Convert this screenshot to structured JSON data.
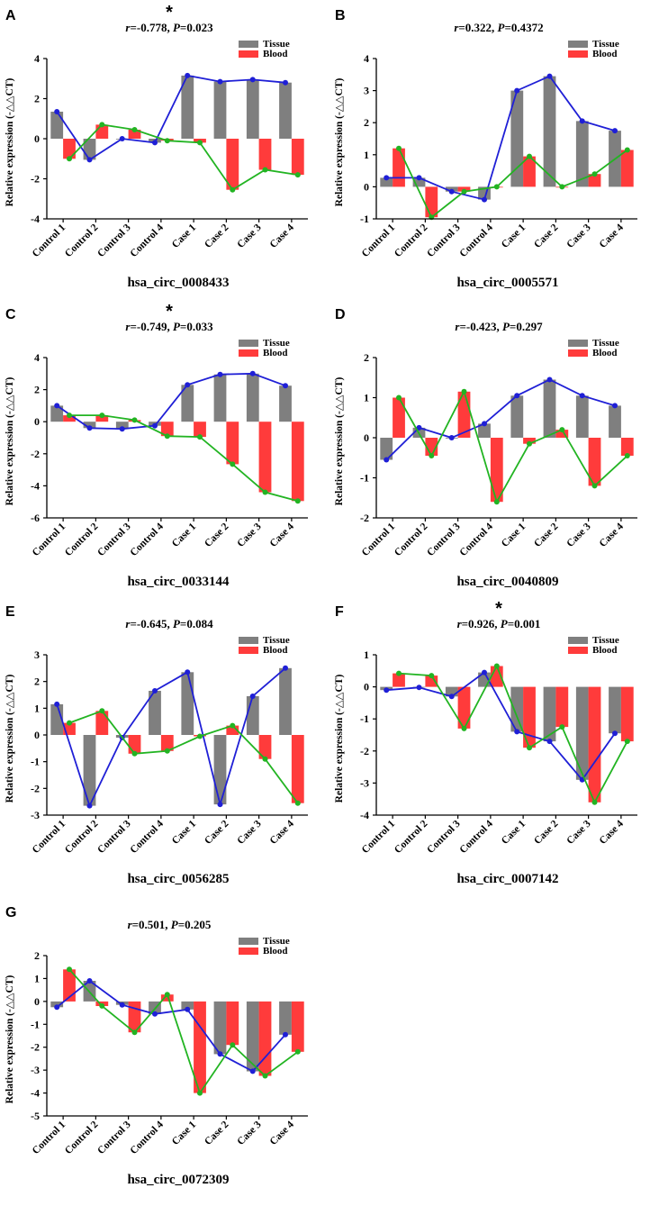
{
  "figure": {
    "legend": {
      "tissue": "Tissue",
      "blood": "Blood"
    },
    "colors": {
      "tissue_bar": "#7f7f7f",
      "blood_bar": "#ff3b3b",
      "tissue_line": "#1f1fd6",
      "blood_line": "#22b422"
    }
  },
  "chart_data": [
    {
      "panel": "A",
      "type": "bar+line",
      "title": "r=-0.778, P=0.023",
      "r": "-0.778",
      "p": "0.023",
      "significance": "*",
      "xlabel": "hsa_circ_0008433",
      "ylabel": "Relative expression (-△△CT)",
      "categories": [
        "Control 1",
        "Control 2",
        "Control 3",
        "Control 4",
        "Case 1",
        "Case 2",
        "Case 3",
        "Case 4"
      ],
      "ylim": [
        -4,
        4
      ],
      "yticks": [
        -4,
        -2,
        0,
        2,
        4
      ],
      "series": [
        {
          "name": "Tissue",
          "values": [
            1.35,
            -1.05,
            0.0,
            -0.2,
            3.15,
            2.85,
            2.95,
            2.8
          ]
        },
        {
          "name": "Blood",
          "values": [
            -1.0,
            0.7,
            0.45,
            -0.1,
            -0.2,
            -2.55,
            -1.55,
            -1.8
          ]
        }
      ]
    },
    {
      "panel": "B",
      "type": "bar+line",
      "title": "r=0.322, P=0.4372",
      "r": "0.322",
      "p": "0.4372",
      "significance": "",
      "xlabel": "hsa_circ_0005571",
      "ylabel": "Relative expression (-△△CT)",
      "categories": [
        "Control 1",
        "Control 2",
        "Control 3",
        "Control 4",
        "Case 1",
        "Case 2",
        "Case 3",
        "Case 4"
      ],
      "ylim": [
        -1,
        4
      ],
      "yticks": [
        -1,
        0,
        1,
        2,
        3,
        4
      ],
      "series": [
        {
          "name": "Tissue",
          "values": [
            0.28,
            0.28,
            -0.15,
            -0.4,
            3.0,
            3.45,
            2.05,
            1.75
          ]
        },
        {
          "name": "Blood",
          "values": [
            1.2,
            -0.95,
            -0.15,
            0.0,
            0.95,
            0.0,
            0.4,
            1.15
          ]
        }
      ]
    },
    {
      "panel": "C",
      "type": "bar+line",
      "title": "r=-0.749, P=0.033",
      "r": "-0.749",
      "p": "0.033",
      "significance": "*",
      "xlabel": "hsa_circ_0033144",
      "ylabel": "Relative expression (-△△CT)",
      "categories": [
        "Control 1",
        "Control 2",
        "Control 3",
        "Control 4",
        "Case 1",
        "Case 2",
        "Case 3",
        "Case 4"
      ],
      "ylim": [
        -6,
        4
      ],
      "yticks": [
        -6,
        -4,
        -2,
        0,
        2,
        4
      ],
      "series": [
        {
          "name": "Tissue",
          "values": [
            1.0,
            -0.4,
            -0.45,
            -0.25,
            2.3,
            2.95,
            3.0,
            2.25
          ]
        },
        {
          "name": "Blood",
          "values": [
            0.4,
            0.4,
            0.1,
            -0.9,
            -0.95,
            -2.65,
            -4.4,
            -4.95
          ]
        }
      ]
    },
    {
      "panel": "D",
      "type": "bar+line",
      "title": "r=-0.423, P=0.297",
      "r": "-0.423",
      "p": "0.297",
      "significance": "",
      "xlabel": "hsa_circ_0040809",
      "ylabel": "Relative expression (-△△CT)",
      "categories": [
        "Control 1",
        "Control 2",
        "Control 3",
        "Control 4",
        "Case 1",
        "Case 2",
        "Case 3",
        "Case 4"
      ],
      "ylim": [
        -2,
        2
      ],
      "yticks": [
        -2,
        -1,
        0,
        1,
        2
      ],
      "series": [
        {
          "name": "Tissue",
          "values": [
            -0.55,
            0.25,
            0.0,
            0.35,
            1.05,
            1.45,
            1.05,
            0.8
          ]
        },
        {
          "name": "Blood",
          "values": [
            1.0,
            -0.45,
            1.15,
            -1.6,
            -0.15,
            0.2,
            -1.2,
            -0.45
          ]
        }
      ]
    },
    {
      "panel": "E",
      "type": "bar+line",
      "title": "r=-0.645, P=0.084",
      "r": "-0.645",
      "p": "0.084",
      "significance": "",
      "xlabel": "hsa_circ_0056285",
      "ylabel": "Relative expression (-△△CT)",
      "categories": [
        "Control 1",
        "Control 2",
        "Control 3",
        "Control 4",
        "Case 1",
        "Case 2",
        "Case 3",
        "Case 4"
      ],
      "ylim": [
        -3,
        3
      ],
      "yticks": [
        -3,
        -2,
        -1,
        0,
        1,
        2,
        3
      ],
      "series": [
        {
          "name": "Tissue",
          "values": [
            1.15,
            -2.65,
            -0.1,
            1.65,
            2.35,
            -2.6,
            1.45,
            2.5
          ]
        },
        {
          "name": "Blood",
          "values": [
            0.45,
            0.9,
            -0.7,
            -0.6,
            -0.05,
            0.35,
            -0.9,
            -2.55
          ]
        }
      ]
    },
    {
      "panel": "F",
      "type": "bar+line",
      "title": "r=0.926, P=0.001",
      "r": "0.926",
      "p": "0.001",
      "significance": "*",
      "xlabel": "hsa_circ_0007142",
      "ylabel": "Relative expression (-△△CT)",
      "categories": [
        "Control 1",
        "Control 2",
        "Control 3",
        "Control 4",
        "Case 1",
        "Case 2",
        "Case 3",
        "Case 4"
      ],
      "ylim": [
        -4,
        1
      ],
      "yticks": [
        -4,
        -3,
        -2,
        -1,
        0,
        1
      ],
      "series": [
        {
          "name": "Tissue",
          "values": [
            -0.1,
            -0.02,
            -0.3,
            0.45,
            -1.4,
            -1.7,
            -2.9,
            -1.45
          ]
        },
        {
          "name": "Blood",
          "values": [
            0.42,
            0.35,
            -1.3,
            0.65,
            -1.9,
            -1.25,
            -3.6,
            -1.7
          ]
        }
      ]
    },
    {
      "panel": "G",
      "type": "bar+line",
      "title": "r=0.501, P=0.205",
      "r": "0.501",
      "p": "0.205",
      "significance": "",
      "xlabel": "hsa_circ_0072309",
      "ylabel": "Relative expression (-△△CT)",
      "categories": [
        "Control 1",
        "Control 2",
        "Control 3",
        "Control 4",
        "Case 1",
        "Case 2",
        "Case 3",
        "Case 4"
      ],
      "ylim": [
        -5,
        2
      ],
      "yticks": [
        -5,
        -4,
        -3,
        -2,
        -1,
        0,
        1,
        2
      ],
      "series": [
        {
          "name": "Tissue",
          "values": [
            -0.25,
            0.9,
            -0.15,
            -0.55,
            -0.35,
            -2.3,
            -3.05,
            -1.45
          ]
        },
        {
          "name": "Blood",
          "values": [
            1.4,
            -0.2,
            -1.35,
            0.3,
            -4.0,
            -1.9,
            -3.25,
            -2.2
          ]
        }
      ]
    }
  ]
}
